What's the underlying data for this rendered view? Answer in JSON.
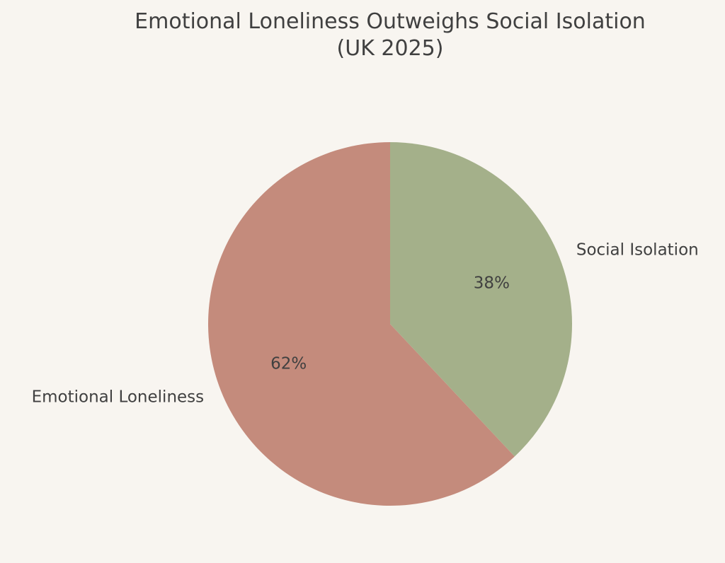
{
  "chart_data": {
    "type": "pie",
    "title": "Emotional Loneliness Outweighs Social Isolation\n(UK 2025)",
    "categories": [
      "Emotional Loneliness",
      "Social Isolation"
    ],
    "values": [
      62,
      38
    ],
    "value_labels": [
      "62%",
      "38%"
    ],
    "colors": [
      "#c48b7c",
      "#a4b08a"
    ]
  }
}
